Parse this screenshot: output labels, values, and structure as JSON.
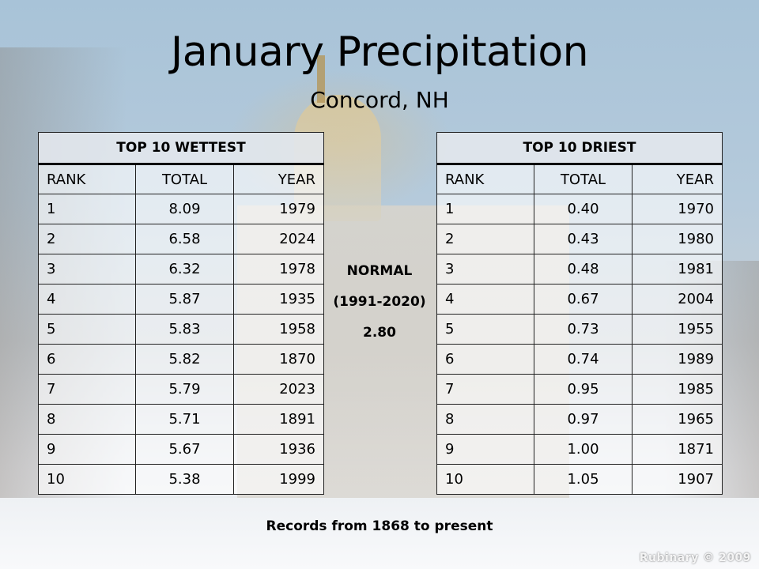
{
  "title": "January Precipitation",
  "subtitle": "Concord, NH",
  "columns": {
    "rank": "RANK",
    "total": "TOTAL",
    "year": "YEAR"
  },
  "wettest": {
    "caption": "TOP 10 WETTEST",
    "rows": [
      {
        "rank": "1",
        "total": "8.09",
        "year": "1979"
      },
      {
        "rank": "2",
        "total": "6.58",
        "year": "2024"
      },
      {
        "rank": "3",
        "total": "6.32",
        "year": "1978"
      },
      {
        "rank": "4",
        "total": "5.87",
        "year": "1935"
      },
      {
        "rank": "5",
        "total": "5.83",
        "year": "1958"
      },
      {
        "rank": "6",
        "total": "5.82",
        "year": "1870"
      },
      {
        "rank": "7",
        "total": "5.79",
        "year": "2023"
      },
      {
        "rank": "8",
        "total": "5.71",
        "year": "1891"
      },
      {
        "rank": "9",
        "total": "5.67",
        "year": "1936"
      },
      {
        "rank": "10",
        "total": "5.38",
        "year": "1999"
      }
    ]
  },
  "driest": {
    "caption": "TOP 10 DRIEST",
    "rows": [
      {
        "rank": "1",
        "total": "0.40",
        "year": "1970"
      },
      {
        "rank": "2",
        "total": "0.43",
        "year": "1980"
      },
      {
        "rank": "3",
        "total": "0.48",
        "year": "1981"
      },
      {
        "rank": "4",
        "total": "0.67",
        "year": "2004"
      },
      {
        "rank": "5",
        "total": "0.73",
        "year": "1955"
      },
      {
        "rank": "6",
        "total": "0.74",
        "year": "1989"
      },
      {
        "rank": "7",
        "total": "0.95",
        "year": "1985"
      },
      {
        "rank": "8",
        "total": "0.97",
        "year": "1965"
      },
      {
        "rank": "9",
        "total": "1.00",
        "year": "1871"
      },
      {
        "rank": "10",
        "total": "1.05",
        "year": "1907"
      }
    ]
  },
  "normal": {
    "label": "NORMAL",
    "period": "(1991-2020)",
    "value": "2.80"
  },
  "footer": "Records from 1868 to present",
  "watermark": "Rubinary © 2009"
}
